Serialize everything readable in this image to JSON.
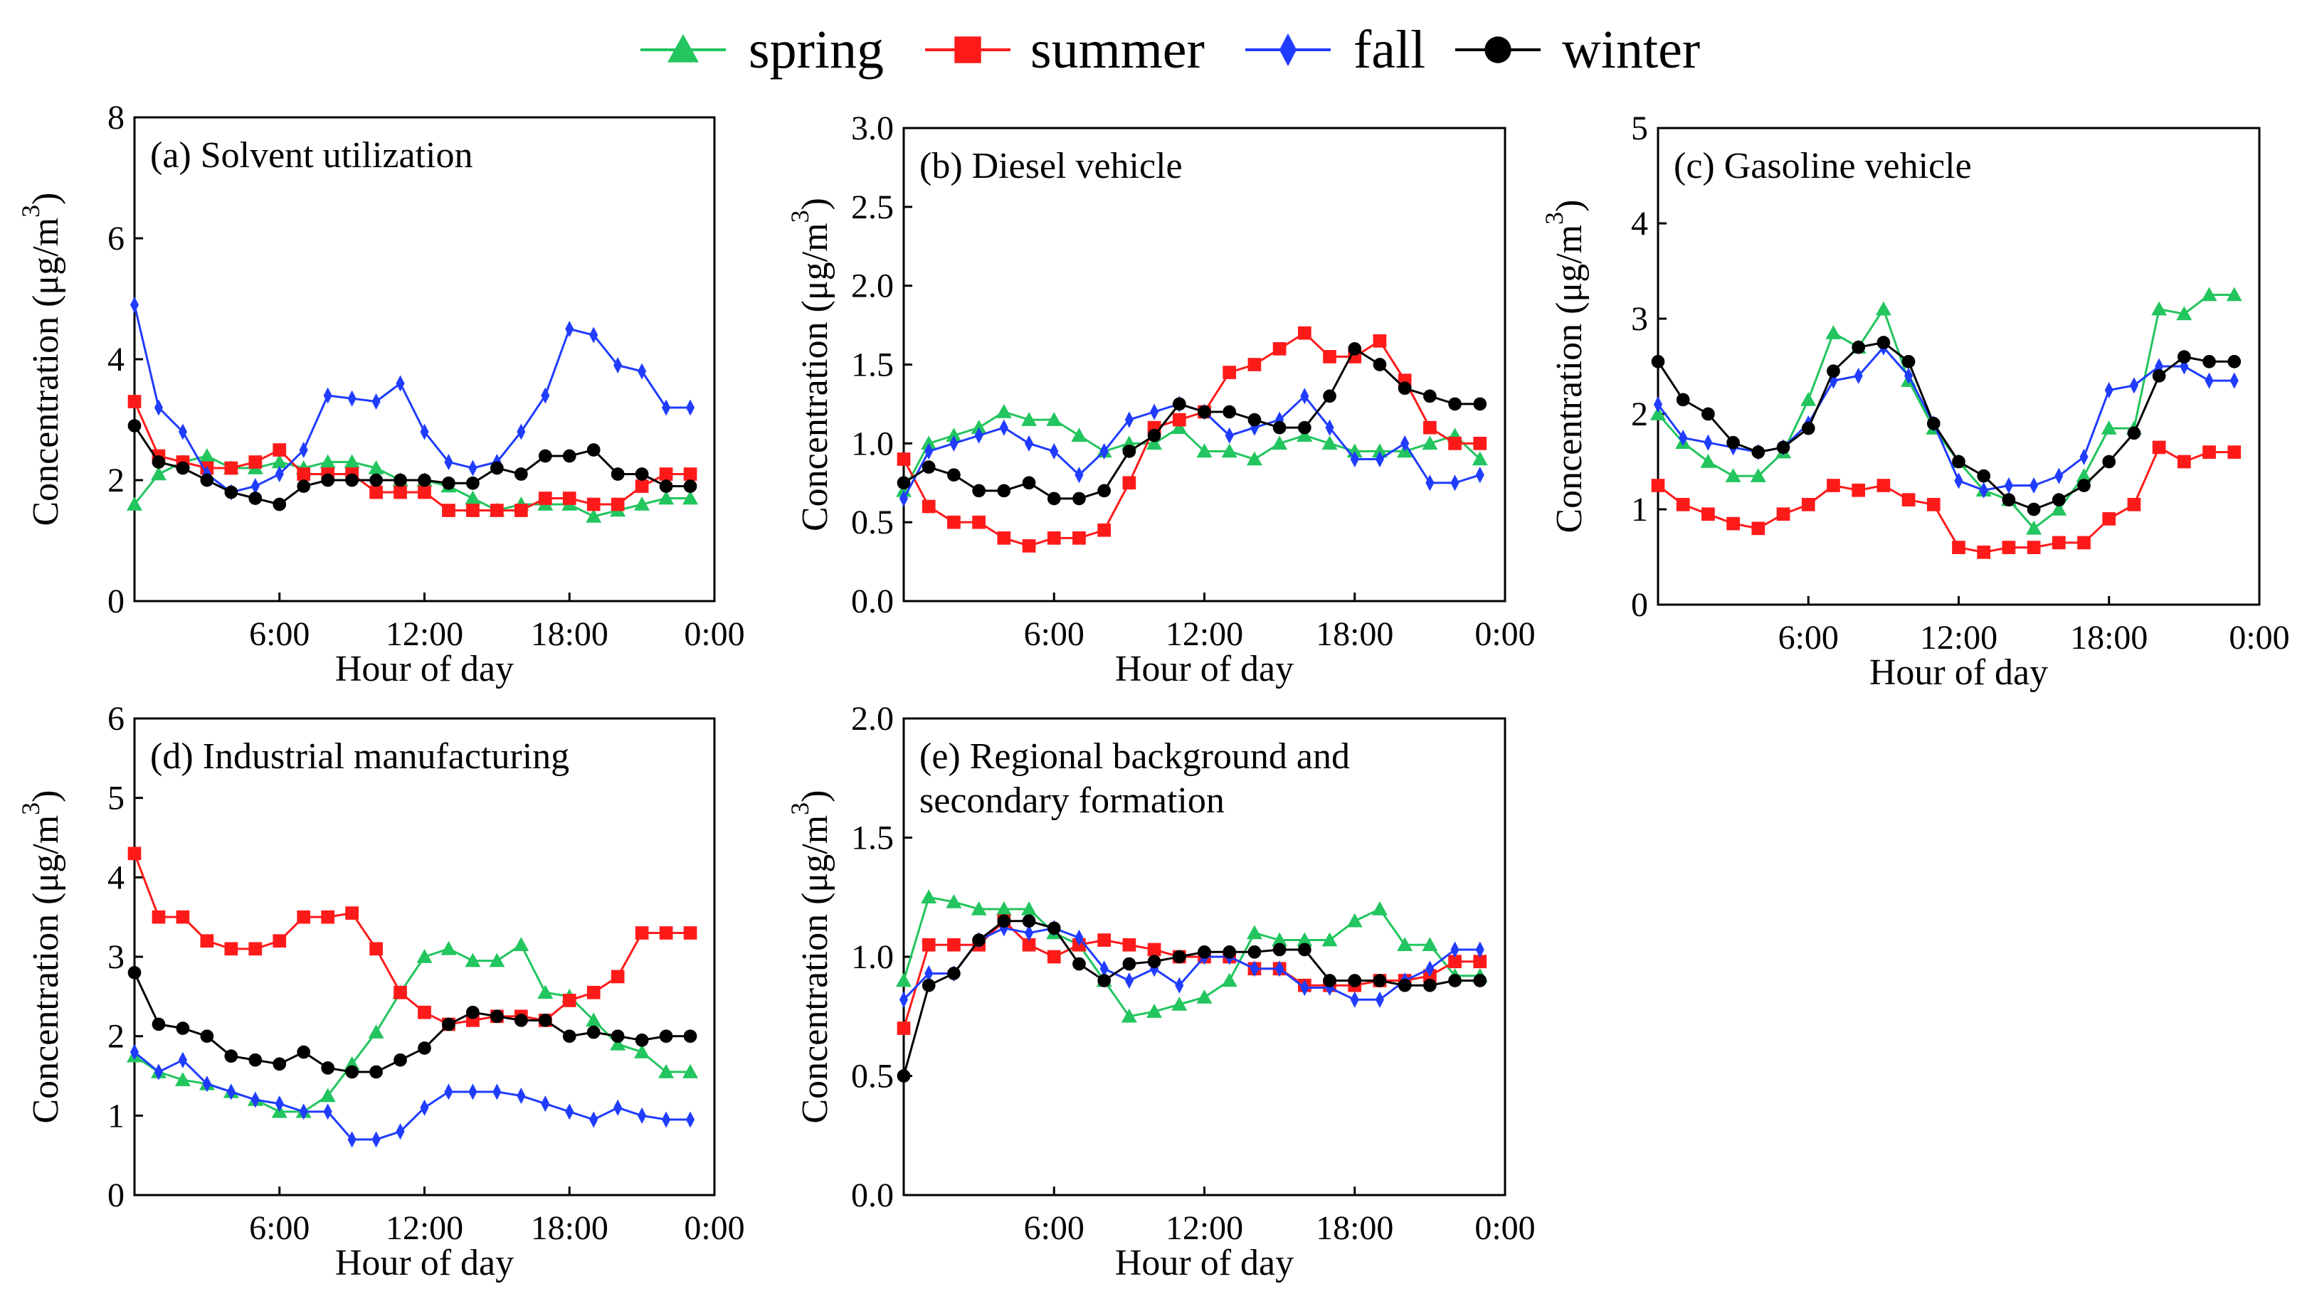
{
  "legend": [
    {
      "key": "spring",
      "label": "spring",
      "color": "#22c55e",
      "marker": "triangle"
    },
    {
      "key": "summer",
      "label": "summer",
      "color": "#ff1a1a",
      "marker": "square"
    },
    {
      "key": "fall",
      "label": "fall",
      "color": "#1f3cff",
      "marker": "diamond"
    },
    {
      "key": "winter",
      "label": "winter",
      "color": "#000000",
      "marker": "circle"
    }
  ],
  "chart_data": [
    {
      "type": "line",
      "title": "(a) Solvent utilization",
      "xlabel": "Hour of day",
      "ylabel": "Concentration (μg/m",
      "ylabel_sup": "3",
      "ylabel_end": ")",
      "xlim": [
        0,
        24
      ],
      "ylim": [
        0,
        8
      ],
      "yticks": [
        0,
        2,
        4,
        6,
        8
      ],
      "ytick_labels": [
        "0",
        "2",
        "4",
        "6",
        "8"
      ],
      "xticks": [
        6,
        12,
        18,
        24
      ],
      "xtick_labels": [
        "6:00",
        "12:00",
        "18:00",
        "0:00"
      ],
      "x": [
        0,
        1,
        2,
        3,
        4,
        5,
        6,
        7,
        8,
        9,
        10,
        11,
        12,
        13,
        14,
        15,
        16,
        17,
        18,
        19,
        20,
        21,
        22,
        23
      ],
      "series": [
        {
          "name": "spring",
          "values": [
            1.6,
            2.1,
            2.3,
            2.4,
            2.2,
            2.2,
            2.3,
            2.2,
            2.3,
            2.3,
            2.2,
            2.0,
            2.0,
            1.9,
            1.7,
            1.5,
            1.6,
            1.6,
            1.6,
            1.4,
            1.5,
            1.6,
            1.7,
            1.7
          ]
        },
        {
          "name": "summer",
          "values": [
            3.3,
            2.4,
            2.3,
            2.2,
            2.2,
            2.3,
            2.5,
            2.1,
            2.1,
            2.1,
            1.8,
            1.8,
            1.8,
            1.5,
            1.5,
            1.5,
            1.5,
            1.7,
            1.7,
            1.6,
            1.6,
            1.9,
            2.1,
            2.1
          ]
        },
        {
          "name": "fall",
          "values": [
            4.9,
            3.2,
            2.8,
            2.1,
            1.8,
            1.9,
            2.1,
            2.5,
            3.4,
            3.35,
            3.3,
            3.6,
            2.8,
            2.3,
            2.2,
            2.3,
            2.8,
            3.4,
            4.5,
            4.4,
            3.9,
            3.8,
            3.2,
            3.2
          ]
        },
        {
          "name": "winter",
          "values": [
            2.9,
            2.3,
            2.2,
            2.0,
            1.8,
            1.7,
            1.6,
            1.9,
            2.0,
            2.0,
            2.0,
            2.0,
            2.0,
            1.95,
            1.95,
            2.2,
            2.1,
            2.4,
            2.4,
            2.5,
            2.1,
            2.1,
            1.9,
            1.9
          ]
        }
      ]
    },
    {
      "type": "line",
      "title": "(b) Diesel vehicle",
      "xlabel": "Hour of day",
      "ylabel": "Concentration (μg/m",
      "ylabel_sup": "3",
      "ylabel_end": ")",
      "xlim": [
        0,
        24
      ],
      "ylim": [
        0,
        3.0
      ],
      "yticks": [
        0,
        0.5,
        1.0,
        1.5,
        2.0,
        2.5,
        3.0
      ],
      "ytick_labels": [
        "0.0",
        "0.5",
        "1.0",
        "1.5",
        "2.0",
        "2.5",
        "3.0"
      ],
      "xticks": [
        6,
        12,
        18,
        24
      ],
      "xtick_labels": [
        "6:00",
        "12:00",
        "18:00",
        "0:00"
      ],
      "x": [
        0,
        1,
        2,
        3,
        4,
        5,
        6,
        7,
        8,
        9,
        10,
        11,
        12,
        13,
        14,
        15,
        16,
        17,
        18,
        19,
        20,
        21,
        22,
        23
      ],
      "series": [
        {
          "name": "spring",
          "values": [
            0.7,
            1.0,
            1.05,
            1.1,
            1.2,
            1.15,
            1.15,
            1.05,
            0.95,
            1.0,
            1.0,
            1.1,
            0.95,
            0.95,
            0.9,
            1.0,
            1.05,
            1.0,
            0.95,
            0.95,
            0.95,
            1.0,
            1.05,
            0.9
          ]
        },
        {
          "name": "summer",
          "values": [
            0.9,
            0.6,
            0.5,
            0.5,
            0.4,
            0.35,
            0.4,
            0.4,
            0.45,
            0.75,
            1.1,
            1.15,
            1.2,
            1.45,
            1.5,
            1.6,
            1.7,
            1.55,
            1.55,
            1.65,
            1.4,
            1.1,
            1.0,
            1.0
          ]
        },
        {
          "name": "fall",
          "values": [
            0.65,
            0.95,
            1.0,
            1.05,
            1.1,
            1.0,
            0.95,
            0.8,
            0.95,
            1.15,
            1.2,
            1.25,
            1.2,
            1.05,
            1.1,
            1.15,
            1.3,
            1.1,
            0.9,
            0.9,
            1.0,
            0.75,
            0.75,
            0.8
          ]
        },
        {
          "name": "winter",
          "values": [
            0.75,
            0.85,
            0.8,
            0.7,
            0.7,
            0.75,
            0.65,
            0.65,
            0.7,
            0.95,
            1.05,
            1.25,
            1.2,
            1.2,
            1.15,
            1.1,
            1.1,
            1.3,
            1.6,
            1.5,
            1.35,
            1.3,
            1.25,
            1.25
          ]
        }
      ]
    },
    {
      "type": "line",
      "title": "(c) Gasoline vehicle",
      "xlabel": "Hour of day",
      "ylabel": "Concentration (μg/m",
      "ylabel_sup": "3",
      "ylabel_end": ")",
      "xlim": [
        0,
        24
      ],
      "ylim": [
        0,
        5
      ],
      "yticks": [
        0,
        1,
        2,
        3,
        4,
        5
      ],
      "ytick_labels": [
        "0",
        "1",
        "2",
        "3",
        "4",
        "5"
      ],
      "xticks": [
        6,
        12,
        18,
        24
      ],
      "xtick_labels": [
        "6:00",
        "12:00",
        "18:00",
        "0:00"
      ],
      "x": [
        0,
        1,
        2,
        3,
        4,
        5,
        6,
        7,
        8,
        9,
        10,
        11,
        12,
        13,
        14,
        15,
        16,
        17,
        18,
        19,
        20,
        21,
        22,
        23
      ],
      "series": [
        {
          "name": "spring",
          "values": [
            2.0,
            1.7,
            1.5,
            1.35,
            1.35,
            1.6,
            2.15,
            2.85,
            2.7,
            3.1,
            2.35,
            1.85,
            1.5,
            1.2,
            1.1,
            0.8,
            1.0,
            1.35,
            1.85,
            1.85,
            3.1,
            3.05,
            3.25,
            3.25
          ]
        },
        {
          "name": "summer",
          "values": [
            1.25,
            1.05,
            0.95,
            0.85,
            0.8,
            0.95,
            1.05,
            1.25,
            1.2,
            1.25,
            1.1,
            1.05,
            0.6,
            0.55,
            0.6,
            0.6,
            0.65,
            0.65,
            0.9,
            1.05,
            1.65,
            1.5,
            1.6,
            1.6
          ]
        },
        {
          "name": "fall",
          "values": [
            2.1,
            1.75,
            1.7,
            1.65,
            1.6,
            1.65,
            1.9,
            2.35,
            2.4,
            2.7,
            2.4,
            1.9,
            1.3,
            1.2,
            1.25,
            1.25,
            1.35,
            1.55,
            2.25,
            2.3,
            2.5,
            2.5,
            2.35,
            2.35
          ]
        },
        {
          "name": "winter",
          "values": [
            2.55,
            2.15,
            2.0,
            1.7,
            1.6,
            1.65,
            1.85,
            2.45,
            2.7,
            2.75,
            2.55,
            1.9,
            1.5,
            1.35,
            1.1,
            1.0,
            1.1,
            1.25,
            1.5,
            1.8,
            2.4,
            2.6,
            2.55,
            2.55
          ]
        }
      ]
    },
    {
      "type": "line",
      "title": "(d) Industrial manufacturing",
      "xlabel": "Hour of day",
      "ylabel": "Concentration (μg/m",
      "ylabel_sup": "3",
      "ylabel_end": ")",
      "xlim": [
        0,
        24
      ],
      "ylim": [
        0,
        6
      ],
      "yticks": [
        0,
        1,
        2,
        3,
        4,
        5,
        6
      ],
      "ytick_labels": [
        "0",
        "1",
        "2",
        "3",
        "4",
        "5",
        "6"
      ],
      "xticks": [
        6,
        12,
        18,
        24
      ],
      "xtick_labels": [
        "6:00",
        "12:00",
        "18:00",
        "0:00"
      ],
      "x": [
        0,
        1,
        2,
        3,
        4,
        5,
        6,
        7,
        8,
        9,
        10,
        11,
        12,
        13,
        14,
        15,
        16,
        17,
        18,
        19,
        20,
        21,
        22,
        23
      ],
      "series": [
        {
          "name": "spring",
          "values": [
            1.75,
            1.55,
            1.45,
            1.4,
            1.3,
            1.2,
            1.05,
            1.05,
            1.25,
            1.65,
            2.05,
            2.55,
            3.0,
            3.1,
            2.95,
            2.95,
            3.15,
            2.55,
            2.5,
            2.2,
            1.9,
            1.8,
            1.55,
            1.55
          ]
        },
        {
          "name": "summer",
          "values": [
            4.3,
            3.5,
            3.5,
            3.2,
            3.1,
            3.1,
            3.2,
            3.5,
            3.5,
            3.55,
            3.1,
            2.55,
            2.3,
            2.15,
            2.2,
            2.25,
            2.25,
            2.2,
            2.45,
            2.55,
            2.75,
            3.3,
            3.3,
            3.3
          ]
        },
        {
          "name": "fall",
          "values": [
            1.8,
            1.55,
            1.7,
            1.4,
            1.3,
            1.2,
            1.15,
            1.05,
            1.05,
            0.7,
            0.7,
            0.8,
            1.1,
            1.3,
            1.3,
            1.3,
            1.25,
            1.15,
            1.05,
            0.95,
            1.1,
            1.0,
            0.95,
            0.95
          ]
        },
        {
          "name": "winter",
          "values": [
            2.8,
            2.15,
            2.1,
            2.0,
            1.75,
            1.7,
            1.65,
            1.8,
            1.6,
            1.55,
            1.55,
            1.7,
            1.85,
            2.15,
            2.3,
            2.25,
            2.2,
            2.2,
            2.0,
            2.05,
            2.0,
            1.95,
            2.0,
            2.0
          ]
        }
      ]
    },
    {
      "type": "line",
      "title": "(e) Regional background and",
      "title_line2": "secondary formation",
      "xlabel": "Hour of day",
      "ylabel": "Concentration (μg/m",
      "ylabel_sup": "3",
      "ylabel_end": ")",
      "xlim": [
        0,
        24
      ],
      "ylim": [
        0,
        2.0
      ],
      "yticks": [
        0,
        0.5,
        1.0,
        1.5,
        2.0
      ],
      "ytick_labels": [
        "0.0",
        "0.5",
        "1.0",
        "1.5",
        "2.0"
      ],
      "xticks": [
        6,
        12,
        18,
        24
      ],
      "xtick_labels": [
        "6:00",
        "12:00",
        "18:00",
        "0:00"
      ],
      "x": [
        0,
        1,
        2,
        3,
        4,
        5,
        6,
        7,
        8,
        9,
        10,
        11,
        12,
        13,
        14,
        15,
        16,
        17,
        18,
        19,
        20,
        21,
        22,
        23
      ],
      "series": [
        {
          "name": "spring",
          "values": [
            0.9,
            1.25,
            1.23,
            1.2,
            1.2,
            1.2,
            1.1,
            1.05,
            0.9,
            0.75,
            0.77,
            0.8,
            0.83,
            0.9,
            1.1,
            1.07,
            1.07,
            1.07,
            1.15,
            1.2,
            1.05,
            1.05,
            0.92,
            0.92
          ]
        },
        {
          "name": "summer",
          "values": [
            0.7,
            1.05,
            1.05,
            1.05,
            1.15,
            1.05,
            1.0,
            1.05,
            1.07,
            1.05,
            1.03,
            1.0,
            1.0,
            1.0,
            0.95,
            0.95,
            0.88,
            0.88,
            0.88,
            0.9,
            0.9,
            0.92,
            0.98,
            0.98
          ]
        },
        {
          "name": "fall",
          "values": [
            0.82,
            0.93,
            0.93,
            1.07,
            1.12,
            1.1,
            1.12,
            1.08,
            0.95,
            0.9,
            0.95,
            0.88,
            1.0,
            1.0,
            0.95,
            0.95,
            0.87,
            0.87,
            0.82,
            0.82,
            0.9,
            0.95,
            1.03,
            1.03
          ]
        },
        {
          "name": "winter",
          "values": [
            0.5,
            0.88,
            0.93,
            1.07,
            1.15,
            1.15,
            1.12,
            0.97,
            0.9,
            0.97,
            0.98,
            1.0,
            1.02,
            1.02,
            1.02,
            1.03,
            1.03,
            0.9,
            0.9,
            0.9,
            0.88,
            0.88,
            0.9,
            0.9
          ]
        }
      ]
    }
  ]
}
